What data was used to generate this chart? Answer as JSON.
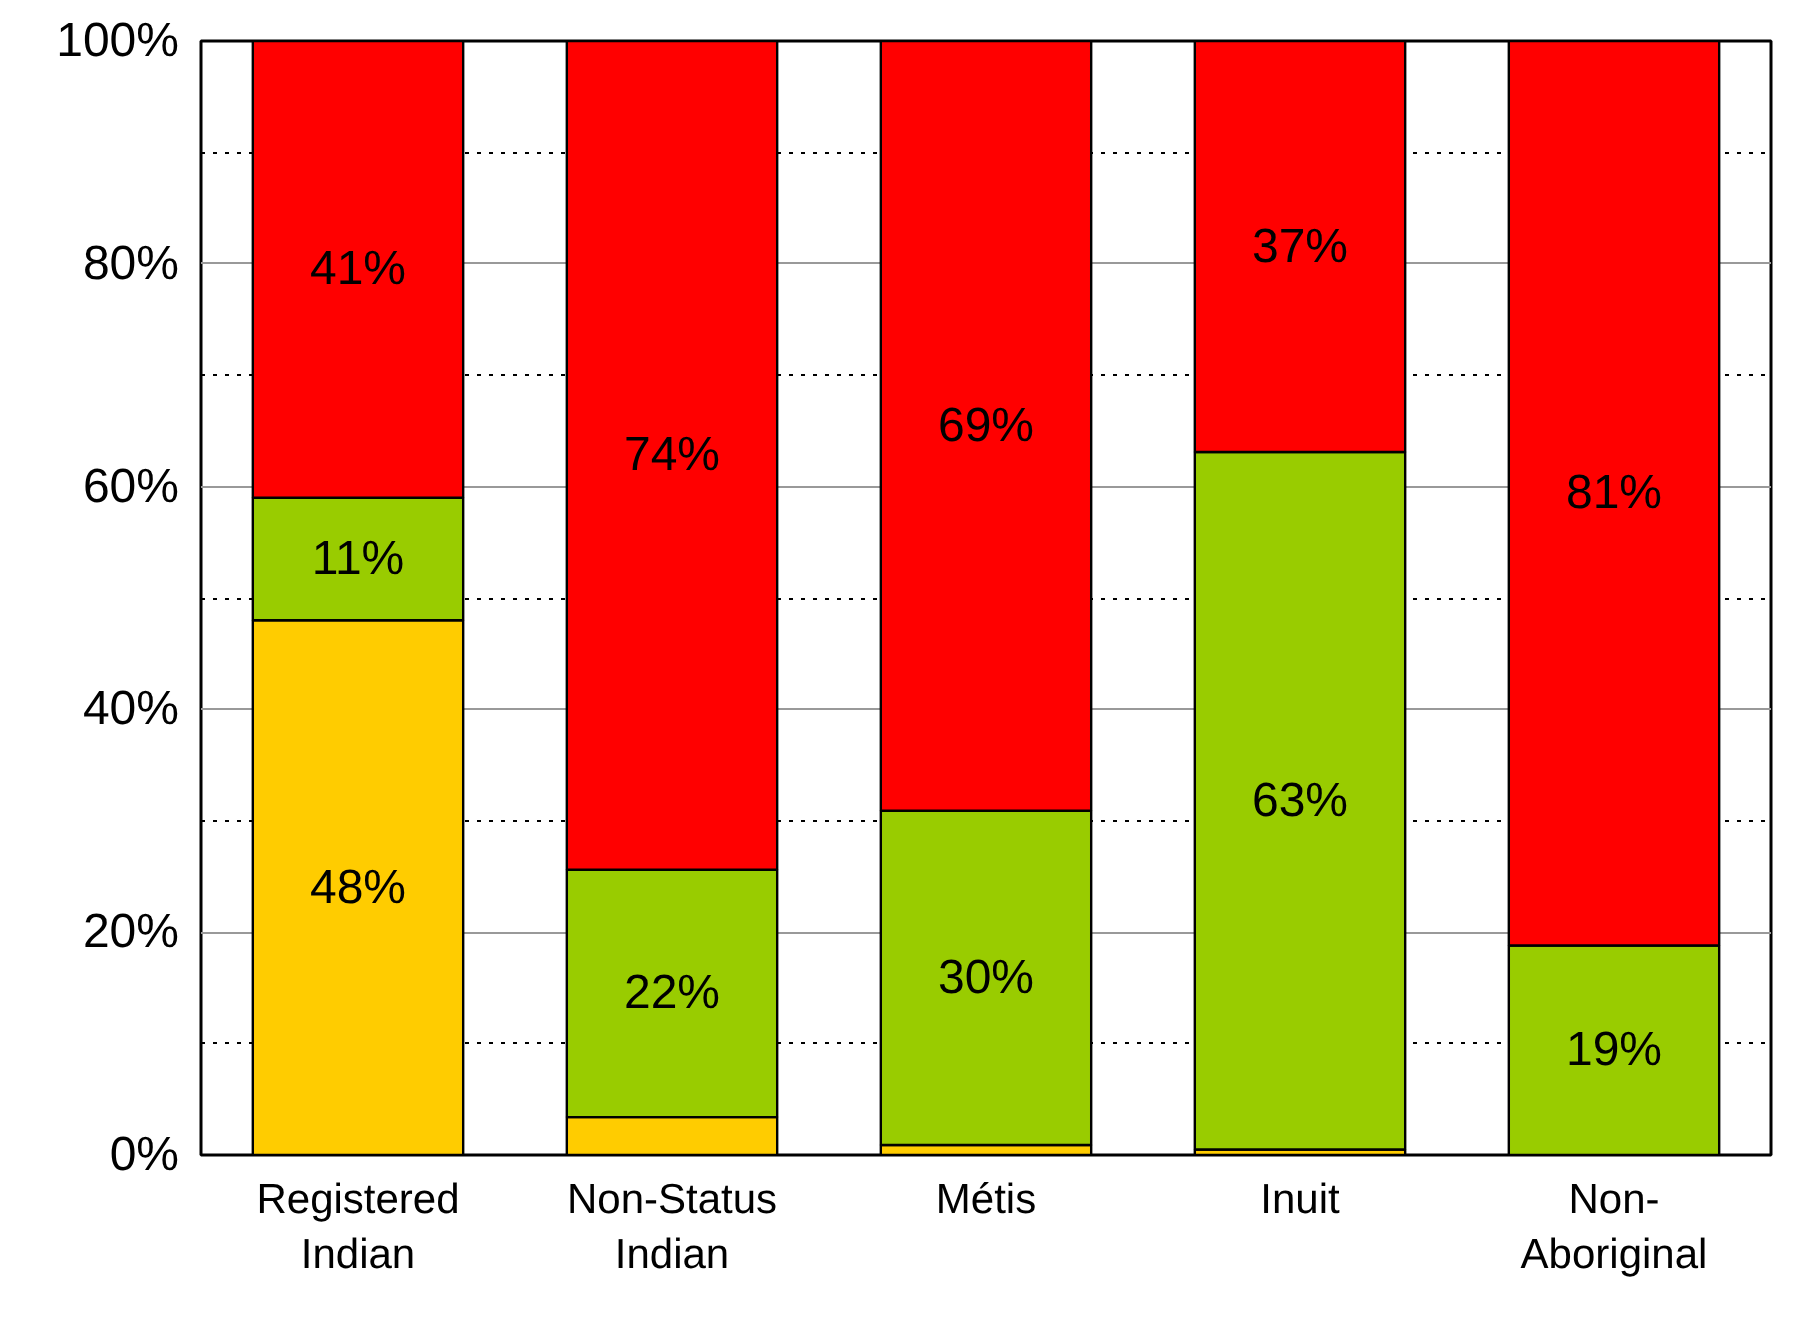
{
  "chart_data": {
    "type": "bar",
    "stacked": true,
    "categories": [
      "Registered\nIndian",
      "Non-Status\nIndian",
      "Métis",
      "Inuit",
      "Non-\nAboriginal"
    ],
    "series": [
      {
        "color": "#ffcc00",
        "values": [
          48,
          3.4,
          0.9,
          0.5,
          0
        ],
        "value_labels": [
          "48%",
          null,
          null,
          null,
          null
        ]
      },
      {
        "color": "#99cc00",
        "values": [
          11,
          22.2,
          30,
          62.6,
          18.8
        ],
        "value_labels": [
          "11%",
          "22%",
          "30%",
          "63%",
          "19%"
        ]
      },
      {
        "color": "#ff0000",
        "values": [
          41,
          74.4,
          69.1,
          36.9,
          81.2
        ],
        "value_labels": [
          "41%",
          "74%",
          "69%",
          "37%",
          "81%"
        ]
      }
    ],
    "ylim": [
      0,
      100
    ],
    "yticks": [
      {
        "value": 0,
        "label": "0%"
      },
      {
        "value": 20,
        "label": "20%"
      },
      {
        "value": 40,
        "label": "40%"
      },
      {
        "value": 60,
        "label": "60%"
      },
      {
        "value": 80,
        "label": "80%"
      },
      {
        "value": 100,
        "label": "100%"
      }
    ],
    "grid": "y"
  }
}
